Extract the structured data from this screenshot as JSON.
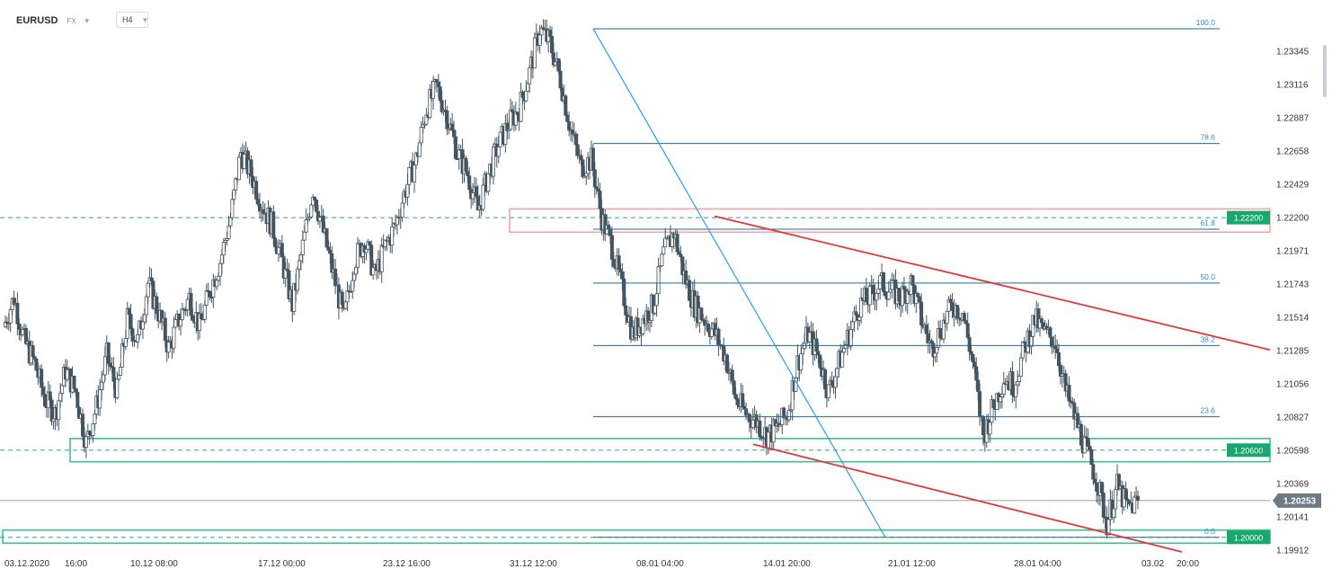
{
  "header": {
    "symbol": "EURUSD",
    "market": "FX",
    "timeframe": "H4"
  },
  "colors": {
    "bull": "#ffffff",
    "bear": "#455560",
    "fib": "#1c6d97",
    "fib_label": "#2f8fcf",
    "trend_red": "#e0393a",
    "blue_line": "#2a9fe3",
    "green_zone": "#3cc390",
    "green_label": "#17a86e",
    "red_zone": "#f4a5a5",
    "current_price_bg": "#6f7b84"
  },
  "chart_data": {
    "type": "candlestick",
    "y_axis": {
      "ticks": [
        "1.23345",
        "1.23116",
        "1.22887",
        "1.22658",
        "1.22429",
        "1.22200",
        "1.21971",
        "1.21743",
        "1.21514",
        "1.21285",
        "1.21056",
        "1.20827",
        "1.20598",
        "1.20369",
        "1.20141",
        "1.19912"
      ]
    },
    "x_axis": {
      "ticks": [
        "03.12.2020",
        "16:00",
        "10.12 08:00",
        "17.12 00:00",
        "23.12 16:00",
        "31.12 12:00",
        "08.01 04:00",
        "14.01 20:00",
        "21.01 12:00",
        "28.01 04:00",
        "03.02",
        "20:00"
      ]
    },
    "current_price": "1.20253",
    "fib_levels": [
      {
        "label": "100.0",
        "value": 1.235
      },
      {
        "label": "78.6",
        "value": 1.2271
      },
      {
        "label": "61.8",
        "value": 1.2212
      },
      {
        "label": "50.0",
        "value": 1.2175
      },
      {
        "label": "38.2",
        "value": 1.2132
      },
      {
        "label": "23.6",
        "value": 1.2083
      },
      {
        "label": "0.0",
        "value": 1.2
      }
    ],
    "levels": [
      {
        "label": "1.22200",
        "value": 1.222,
        "zone": "red",
        "zone_low": 1.221,
        "zone_high": 1.2226
      },
      {
        "label": "1.20600",
        "value": 1.206,
        "zone": "green",
        "zone_low": 1.2052,
        "zone_high": 1.2068
      },
      {
        "label": "1.20000",
        "value": 1.2,
        "zone": "green",
        "zone_low": 1.1996,
        "zone_high": 1.2005
      }
    ],
    "path": [
      1.2145,
      1.2165,
      1.2135,
      1.212,
      1.2095,
      1.2085,
      1.2115,
      1.21,
      1.2065,
      1.209,
      1.2125,
      1.21,
      1.215,
      1.2135,
      1.2175,
      1.2155,
      1.213,
      1.215,
      1.2165,
      1.2145,
      1.217,
      1.219,
      1.222,
      1.2265,
      1.225,
      1.223,
      1.2215,
      1.219,
      1.216,
      1.22,
      1.224,
      1.221,
      1.218,
      1.215,
      1.219,
      1.2205,
      1.218,
      1.22,
      1.2215,
      1.224,
      1.226,
      1.2295,
      1.231,
      1.229,
      1.2265,
      1.225,
      1.2225,
      1.225,
      1.227,
      1.2285,
      1.2295,
      1.232,
      1.235,
      1.234,
      1.2315,
      1.228,
      1.2255,
      1.226,
      1.222,
      1.22,
      1.217,
      1.214,
      1.215,
      1.216,
      1.2195,
      1.221,
      1.218,
      1.216,
      1.215,
      1.214,
      1.2125,
      1.2095,
      1.2085,
      1.208,
      1.207,
      1.2075,
      1.2085,
      1.212,
      1.214,
      1.2125,
      1.21,
      1.212,
      1.214,
      1.216,
      1.2165,
      1.2175,
      1.217,
      1.2165,
      1.2175,
      1.215,
      1.213,
      1.2145,
      1.216,
      1.2155,
      1.212,
      1.207,
      1.209,
      1.211,
      1.2105,
      1.213,
      1.215,
      1.214,
      1.2135,
      1.21,
      1.208,
      1.206,
      1.204,
      1.201,
      1.2035,
      1.202,
      1.2025
    ]
  }
}
